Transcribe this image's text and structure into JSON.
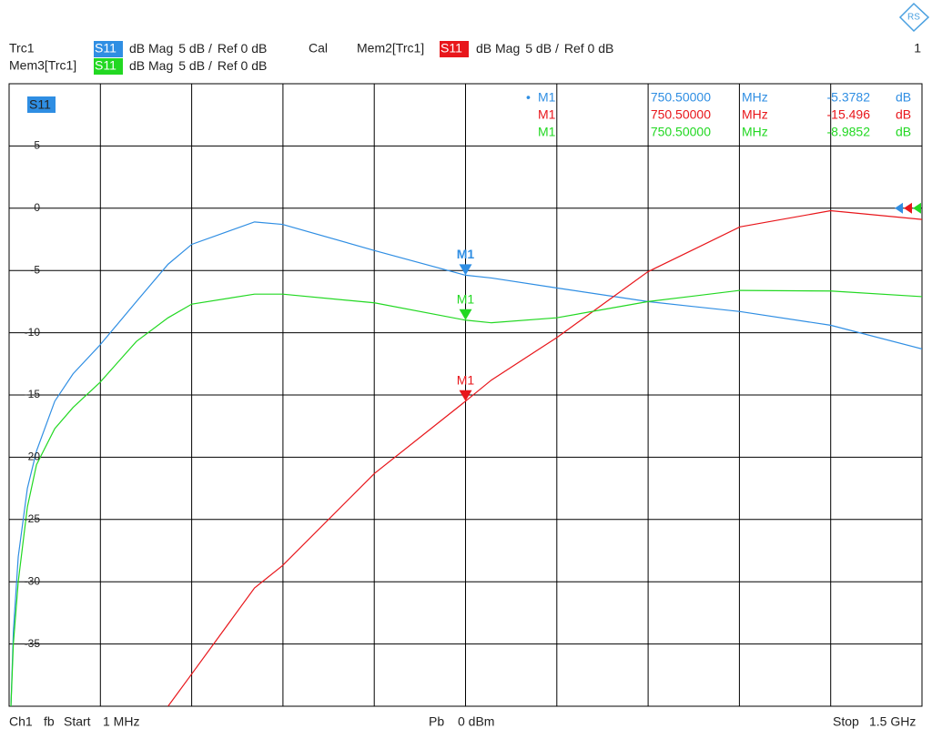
{
  "chart_data": {
    "type": "line",
    "plot_label": "S11",
    "window": 1,
    "xlim": [
      1,
      1500
    ],
    "ylim": [
      -40,
      10
    ],
    "xticks": [
      1,
      150.9,
      300.8,
      450.7,
      600.6,
      750.5,
      900.4,
      1050.3,
      1200.2,
      1350.1,
      1500
    ],
    "yticks": [
      5,
      0,
      -5,
      -10,
      -15,
      -20,
      -25,
      -30,
      -35
    ],
    "ref_level": 0,
    "grid": true,
    "x": [
      4,
      8,
      16,
      31,
      46,
      76,
      106,
      150,
      210,
      262,
      301,
      404,
      450,
      601,
      750.5,
      793,
      900,
      1050,
      1201,
      1350,
      1500
    ],
    "series": [
      {
        "name": "Trc1",
        "param": "S11",
        "format": "dB Mag",
        "scale": "5 dB /",
        "ref": "Ref 0 dB",
        "status": "Cal",
        "color": "#2f8ee3",
        "values": [
          -40,
          -34,
          -28,
          -22.5,
          -19.5,
          -15.5,
          -13.3,
          -11,
          -7.5,
          -4.5,
          -2.9,
          -1.1,
          -1.3,
          -3.4,
          -5.38,
          -5.6,
          -6.4,
          -7.5,
          -8.3,
          -9.4,
          -11.3
        ],
        "marker": {
          "name": "M1",
          "x": {
            "value": 750.5,
            "label": "750.50000"
          },
          "x_unit": "MHz",
          "value": -5.3782,
          "unit": "dB"
        }
      },
      {
        "name": "Mem2[Trc1]",
        "param": "S11",
        "format": "dB Mag",
        "scale": "5 dB /",
        "ref": "Ref 0 dB",
        "color": "#e8161b",
        "values": [
          null,
          null,
          null,
          null,
          null,
          null,
          null,
          null,
          null,
          -40,
          -37.4,
          -30.5,
          -28.7,
          -21.3,
          -15.5,
          -13.8,
          -10.4,
          -5.1,
          -1.5,
          -0.2,
          -0.9
        ],
        "marker": {
          "name": "M1",
          "x": {
            "value": 750.5,
            "label": "750.50000"
          },
          "x_unit": "MHz",
          "value": -15.496,
          "unit": "dB"
        }
      },
      {
        "name": "Mem3[Trc1]",
        "param": "S11",
        "format": "dB Mag",
        "scale": "5 dB /",
        "ref": "Ref 0 dB",
        "color": "#22d822",
        "values": [
          -40,
          -35,
          -30,
          -24,
          -20.6,
          -17.7,
          -16,
          -14,
          -10.7,
          -8.8,
          -7.7,
          -6.9,
          -6.9,
          -7.6,
          -8.99,
          -9.2,
          -8.8,
          -7.5,
          -6.6,
          -6.65,
          -7.1
        ],
        "marker": {
          "name": "M1",
          "x": {
            "value": 750.5,
            "label": "750.50000"
          },
          "x_unit": "MHz",
          "value": -8.9852,
          "unit": "dB"
        }
      }
    ],
    "footer": {
      "channel": "Ch1",
      "mode": "fb",
      "start_label": "Start",
      "start": "1 MHz",
      "power_label": "Pb",
      "power": "0 dBm",
      "stop_label": "Stop",
      "stop": "1.5 GHz"
    }
  }
}
